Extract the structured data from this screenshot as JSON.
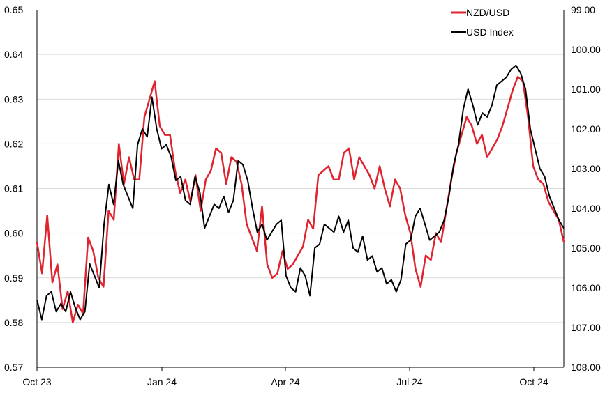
{
  "chart_data": {
    "type": "line",
    "title": "",
    "xlabel": "",
    "ylabel_left": "",
    "ylabel_right": "",
    "x_tick_labels": [
      "Oct 23",
      "Jan 24",
      "Apr 24",
      "Jul 24",
      "Oct 24"
    ],
    "left_axis": {
      "ylim": [
        0.57,
        0.65
      ],
      "tick_labels": [
        "0.65",
        "0.64",
        "0.63",
        "0.62",
        "0.61",
        "0.60",
        "0.59",
        "0.58",
        "0.57"
      ]
    },
    "right_axis": {
      "ylim": [
        108.0,
        99.0
      ],
      "inverted": true,
      "tick_labels": [
        "99.00",
        "100.00",
        "101.00",
        "102.00",
        "103.00",
        "104.00",
        "105.00",
        "106.00",
        "107.00",
        "108.00"
      ]
    },
    "grid": "horizontal",
    "legend_position": "top-right",
    "colors": {
      "nzdusd": "#e0242f",
      "usd_index": "#000000",
      "grid": "#d9d9d9"
    },
    "series": [
      {
        "name": "NZD/USD",
        "axis": "left",
        "t": [
          0,
          1,
          2,
          3,
          4,
          5,
          6,
          7,
          8,
          9,
          10,
          11,
          12,
          13,
          14,
          15,
          16,
          17,
          18,
          19,
          20,
          21,
          22,
          23,
          24,
          25,
          26,
          27,
          28,
          29,
          30,
          31,
          32,
          33,
          34,
          35,
          36,
          37,
          38,
          39,
          40,
          41,
          42,
          43,
          44,
          45,
          46,
          47,
          48,
          49,
          50,
          51
        ],
        "values": [
          0.598,
          0.591,
          0.604,
          0.589,
          0.593,
          0.583,
          0.587,
          0.58,
          0.584,
          0.582,
          0.599,
          0.596,
          0.59,
          0.588,
          0.605,
          0.603,
          0.62,
          0.611,
          0.617,
          0.612,
          0.612,
          0.626,
          0.63,
          0.634,
          0.624,
          0.622,
          0.622,
          0.614,
          0.609,
          0.612,
          0.607,
          0.613,
          0.605,
          0.612,
          0.614,
          0.619,
          0.618,
          0.611,
          0.617,
          0.616,
          0.611,
          0.602,
          0.599,
          0.596,
          0.606,
          0.593,
          0.59,
          0.591,
          0.596,
          0.592,
          0.593,
          0.595
        ],
        "values_more": [
          0.597,
          0.603,
          0.601,
          0.613,
          0.614,
          0.615,
          0.612,
          0.612,
          0.618,
          0.619,
          0.612,
          0.617,
          0.615,
          0.613,
          0.61,
          0.615,
          0.61,
          0.606,
          0.612,
          0.61,
          0.604,
          0.6,
          0.592,
          0.588,
          0.595,
          0.594,
          0.6,
          0.598,
          0.605,
          0.612,
          0.618,
          0.622,
          0.626,
          0.624,
          0.62,
          0.622,
          0.617,
          0.619,
          0.621,
          0.624,
          0.628,
          0.632,
          0.635,
          0.634,
          0.626,
          0.615,
          0.612,
          0.611,
          0.607,
          0.605,
          0.603,
          0.598
        ]
      },
      {
        "name": "USD Index",
        "axis": "right",
        "values": [
          106.3,
          106.8,
          106.2,
          106.1,
          106.6,
          106.4,
          106.6,
          106.1,
          106.5,
          106.8,
          106.6,
          105.4,
          105.7,
          106.0,
          104.4,
          103.4,
          103.9,
          102.8,
          103.4,
          103.7,
          104.0,
          102.4,
          102.0,
          102.2,
          101.2,
          102.0,
          102.5,
          102.4,
          102.7,
          103.3,
          103.2,
          103.8,
          103.9,
          103.2,
          103.6,
          104.5,
          104.2,
          103.9,
          104.0,
          103.7,
          104.1,
          103.8,
          102.8,
          102.9,
          103.3,
          104.0,
          104.6,
          104.4,
          104.8,
          104.6,
          104.4,
          104.3,
          105.7,
          106.0,
          106.1,
          105.5,
          105.7,
          106.2,
          105.0,
          104.9,
          104.4,
          104.5,
          104.6,
          104.2,
          104.6,
          104.3,
          105.0,
          105.1,
          104.7,
          105.3,
          105.2,
          105.6,
          105.5,
          105.9,
          105.8,
          106.1,
          105.8,
          104.9,
          104.8,
          104.2,
          104.0,
          104.4,
          104.8,
          104.7,
          104.6,
          104.3,
          103.7,
          102.9,
          102.4,
          101.5,
          101.0,
          101.4,
          101.9,
          101.6,
          101.7,
          101.4,
          100.9,
          100.8,
          100.7,
          100.5,
          100.4,
          100.6,
          101.0,
          102.0,
          102.5,
          103.0,
          103.2,
          103.7,
          104.0,
          104.3,
          104.5
        ]
      }
    ]
  },
  "legend": {
    "items": [
      {
        "label": "NZD/USD",
        "color": "#e0242f"
      },
      {
        "label": "USD Index",
        "color": "#000000"
      }
    ]
  }
}
